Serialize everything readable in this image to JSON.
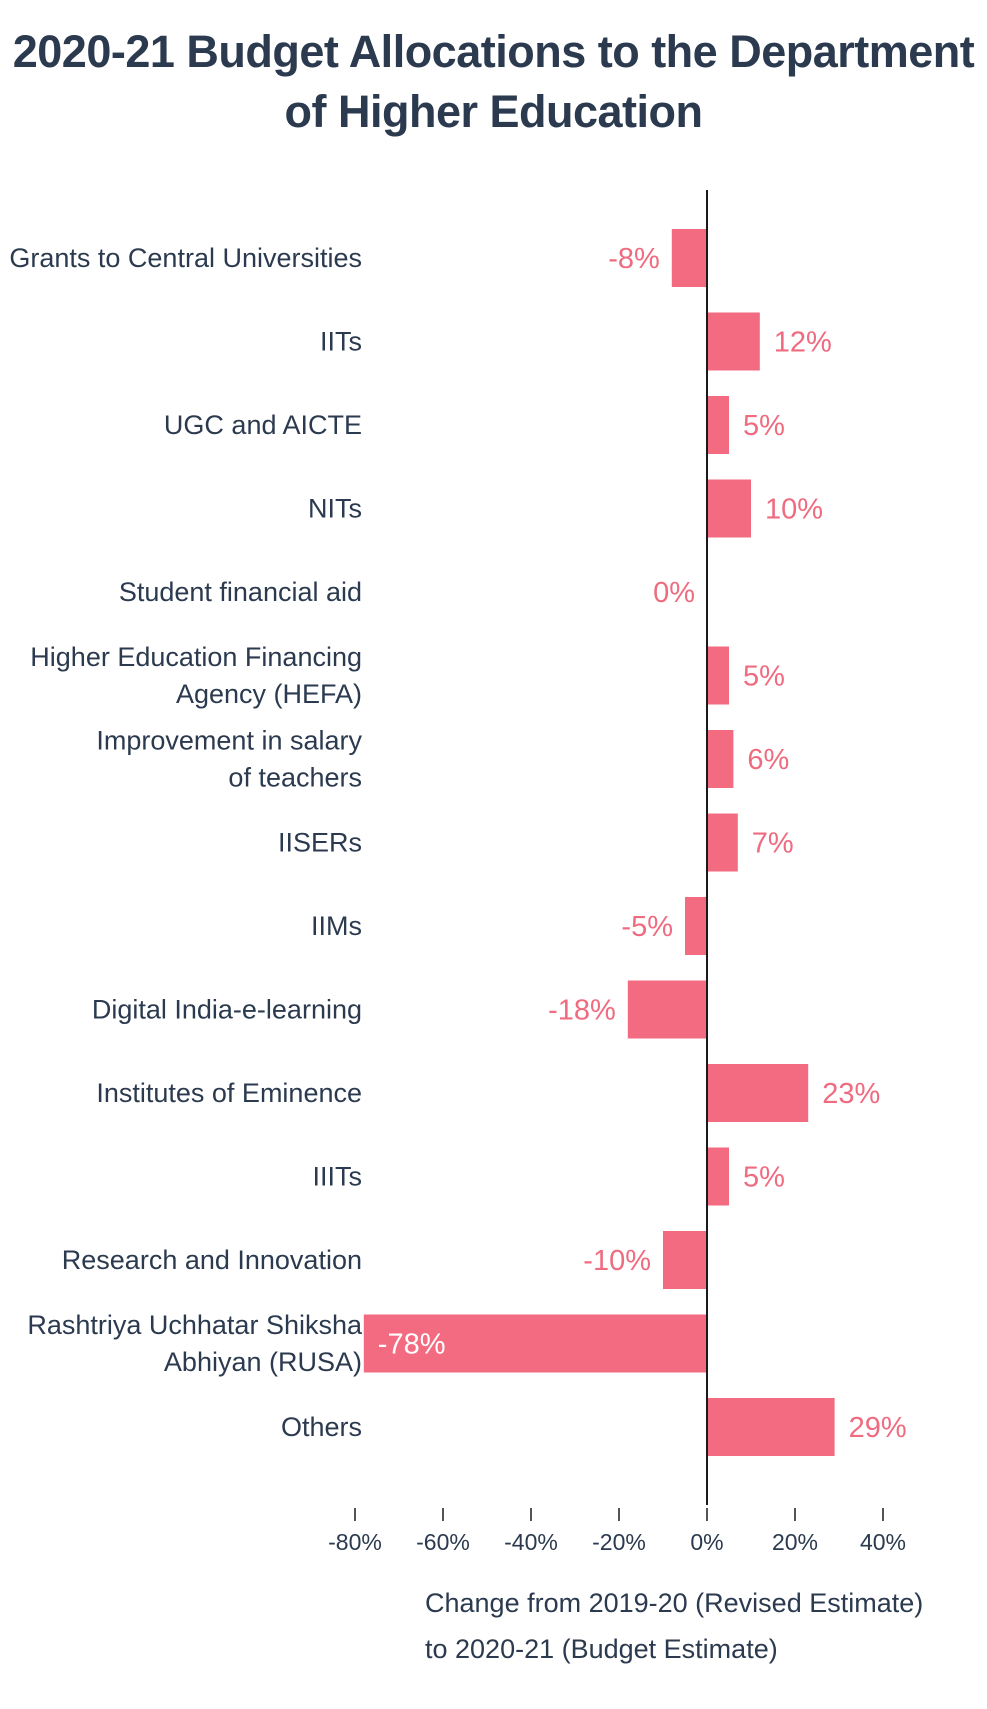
{
  "chart_data": {
    "type": "bar",
    "orientation": "horizontal",
    "title": [
      "2020-21 Budget Allocations to the Department",
      "of Higher Education"
    ],
    "categories": [
      [
        "Grants to Central Universities"
      ],
      [
        "IITs"
      ],
      [
        "UGC and AICTE"
      ],
      [
        "NITs"
      ],
      [
        "Student financial aid"
      ],
      [
        "Higher Education Financing",
        "Agency (HEFA)"
      ],
      [
        "Improvement in salary",
        "of teachers"
      ],
      [
        "IISERs"
      ],
      [
        "IIMs"
      ],
      [
        "Digital India-e-learning"
      ],
      [
        "Institutes of Eminence"
      ],
      [
        "IIITs"
      ],
      [
        "Research and Innovation"
      ],
      [
        "Rashtriya Uchhatar Shiksha",
        "Abhiyan (RUSA)"
      ],
      [
        "Others"
      ]
    ],
    "values": [
      -8,
      12,
      5,
      10,
      0,
      5,
      6,
      7,
      -5,
      -18,
      23,
      5,
      -10,
      -78,
      29
    ],
    "value_labels": [
      "-8%",
      "12%",
      "5%",
      "10%",
      "0%",
      "5%",
      "6%",
      "7%",
      "-5%",
      "-18%",
      "23%",
      "5%",
      "-10%",
      "-78%",
      "29%"
    ],
    "xlim": [
      -80,
      40
    ],
    "xticks": [
      -80,
      -60,
      -40,
      -20,
      0,
      20,
      40
    ],
    "xtick_labels": [
      "-80%",
      "-60%",
      "-40%",
      "-20%",
      "0%",
      "20%",
      "40%"
    ],
    "xlabel": [
      "Change from 2019-20 (Revised Estimate)",
      "to 2020-21 (Budget Estimate)"
    ],
    "ylabel": "",
    "grid": false,
    "legend": "none",
    "colors": {
      "bar": "#f26b80",
      "value_label": "#ef6b80",
      "text": "#2b3a4f",
      "axis": "#1a1a1a"
    }
  }
}
